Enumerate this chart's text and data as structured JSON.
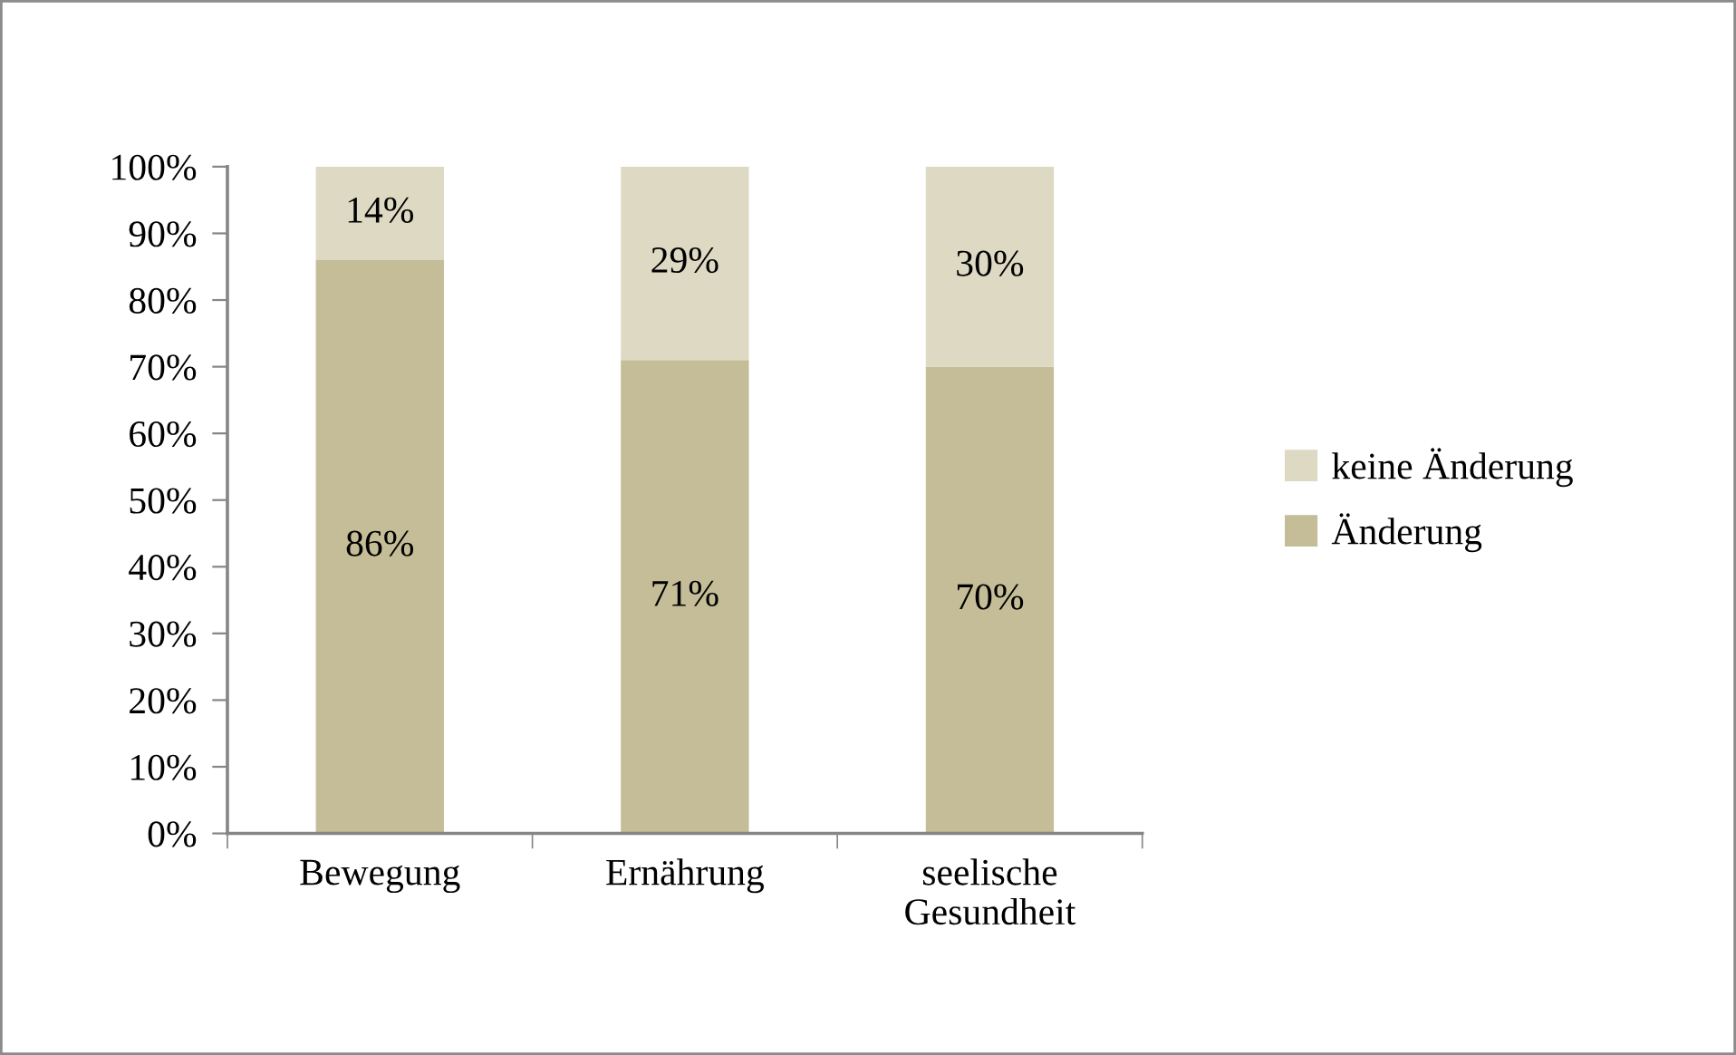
{
  "chart_data": {
    "type": "bar",
    "stacked": true,
    "categories": [
      "Bewegung",
      "Ernährung",
      "seelische\nGesundheit"
    ],
    "series": [
      {
        "name": "Änderung",
        "color": "#c4bd97",
        "values": [
          86,
          71,
          70
        ],
        "value_labels": [
          "86%",
          "71%",
          "70%"
        ]
      },
      {
        "name": "keine Änderung",
        "color": "#ddd9c3",
        "values": [
          14,
          29,
          30
        ],
        "value_labels": [
          "14%",
          "29%",
          "30%"
        ]
      }
    ],
    "ylim": [
      0,
      100
    ],
    "yticks": [
      {
        "value": 0,
        "label": "0%"
      },
      {
        "value": 10,
        "label": "10%"
      },
      {
        "value": 20,
        "label": "20%"
      },
      {
        "value": 30,
        "label": "30%"
      },
      {
        "value": 40,
        "label": "40%"
      },
      {
        "value": 50,
        "label": "50%"
      },
      {
        "value": 60,
        "label": "60%"
      },
      {
        "value": 70,
        "label": "70%"
      },
      {
        "value": 80,
        "label": "80%"
      },
      {
        "value": 90,
        "label": "90%"
      },
      {
        "value": 100,
        "label": "100%"
      }
    ],
    "legend": "right"
  }
}
